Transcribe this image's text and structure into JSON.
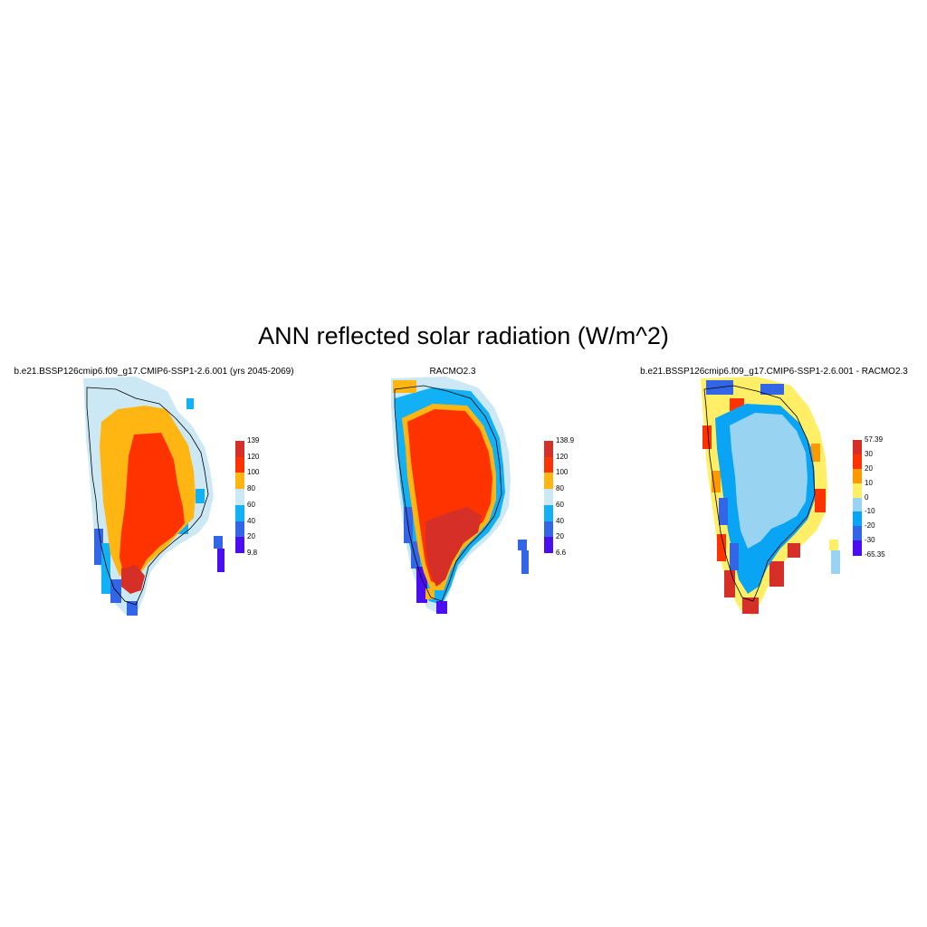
{
  "title": "ANN reflected solar radiation (W/m^2)",
  "panels": [
    {
      "title": "b.e21.BSSP126cmip6.f09_g17.CMIP6-SSP1-2.6.001 (yrs 2045-2069)",
      "colorbar": {
        "labels": [
          "139",
          "120",
          "100",
          "80",
          "60",
          "40",
          "20",
          "9.8"
        ],
        "colors": [
          "#d62f27",
          "#ff3300",
          "#ffb612",
          "#cce8f4",
          "#12b0f4",
          "#3366e6",
          "#4a0ef0"
        ]
      }
    },
    {
      "title": "RACMO2.3",
      "colorbar": {
        "labels": [
          "138.9",
          "120",
          "100",
          "80",
          "60",
          "40",
          "20",
          "6.6"
        ],
        "colors": [
          "#d62f27",
          "#ff3300",
          "#ffb612",
          "#cce8f4",
          "#12b0f4",
          "#3366e6",
          "#4a0ef0"
        ]
      }
    },
    {
      "title": "b.e21.BSSP126cmip6.f09_g17.CMIP6-SSP1-2.6.001 - RACMO2.3",
      "colorbar": {
        "labels": [
          "57.39",
          "30",
          "20",
          "10",
          "0",
          "-10",
          "-20",
          "-30",
          "-65.35"
        ],
        "colors": [
          "#d62f27",
          "#ff3300",
          "#ff9900",
          "#ffee66",
          "#99d3f2",
          "#0aa4f5",
          "#3366e6",
          "#4a0ef0"
        ]
      }
    }
  ]
}
